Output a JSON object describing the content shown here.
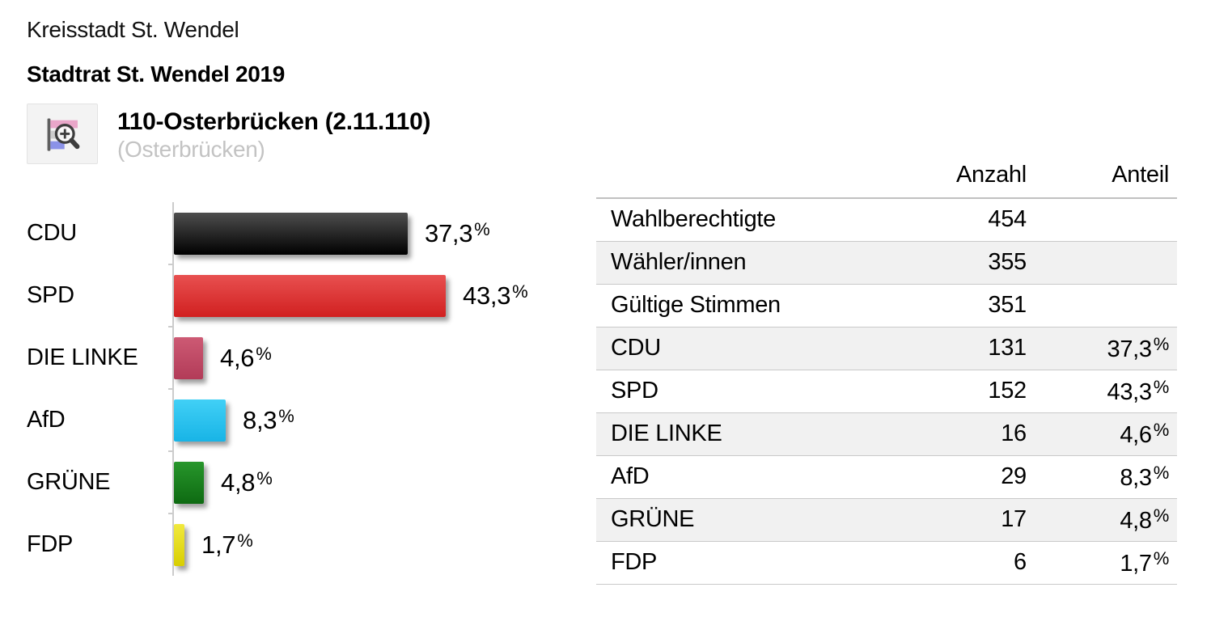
{
  "percent_sign": "%",
  "header": {
    "region": "Kreisstadt St. Wendel",
    "election": "Stadtrat St. Wendel 2019",
    "district_title": "110-Osterbrücken (2.11.110)",
    "district_subtitle": "(Osterbrücken)"
  },
  "chart_data": {
    "type": "bar",
    "orientation": "horizontal",
    "title": "",
    "xlabel": "",
    "ylabel": "",
    "xlim": [
      0,
      47
    ],
    "grid": false,
    "legend": false,
    "categories": [
      "CDU",
      "SPD",
      "DIE LINKE",
      "AfD",
      "GRÜNE",
      "FDP"
    ],
    "values": [
      37.3,
      43.3,
      4.6,
      8.3,
      4.8,
      1.7
    ],
    "value_labels": [
      "37,3",
      "43,3",
      "4,6",
      "8,3",
      "4,8",
      "1,7"
    ],
    "axis_color": "#cccccc",
    "bar_colors": [
      {
        "party": "CDU",
        "top": "#4e4e4e",
        "bottom": "#000000"
      },
      {
        "party": "SPD",
        "top": "#e85050",
        "bottom": "#d12020"
      },
      {
        "party": "DIE LINKE",
        "top": "#cd5a74",
        "bottom": "#b23b58"
      },
      {
        "party": "AfD",
        "top": "#41d0f6",
        "bottom": "#18b4e6"
      },
      {
        "party": "GRÜNE",
        "top": "#27962b",
        "bottom": "#0e6a12"
      },
      {
        "party": "FDP",
        "top": "#f1e93e",
        "bottom": "#d8ce00"
      }
    ]
  },
  "table": {
    "headers": {
      "anzahl": "Anzahl",
      "anteil": "Anteil"
    },
    "stripe_color": "#f1f1f1",
    "border_color": "#c9c9c9",
    "rows": [
      {
        "label": "Wahlberechtigte",
        "anzahl": "454",
        "anteil": ""
      },
      {
        "label": "Wähler/innen",
        "anzahl": "355",
        "anteil": ""
      },
      {
        "label": "Gültige Stimmen",
        "anzahl": "351",
        "anteil": ""
      },
      {
        "label": "CDU",
        "anzahl": "131",
        "anteil": "37,3"
      },
      {
        "label": "SPD",
        "anzahl": "152",
        "anteil": "43,3"
      },
      {
        "label": "DIE LINKE",
        "anzahl": "16",
        "anteil": "4,6"
      },
      {
        "label": "AfD",
        "anzahl": "29",
        "anteil": "8,3"
      },
      {
        "label": "GRÜNE",
        "anzahl": "17",
        "anteil": "4,8"
      },
      {
        "label": "FDP",
        "anzahl": "6",
        "anteil": "1,7"
      }
    ]
  }
}
